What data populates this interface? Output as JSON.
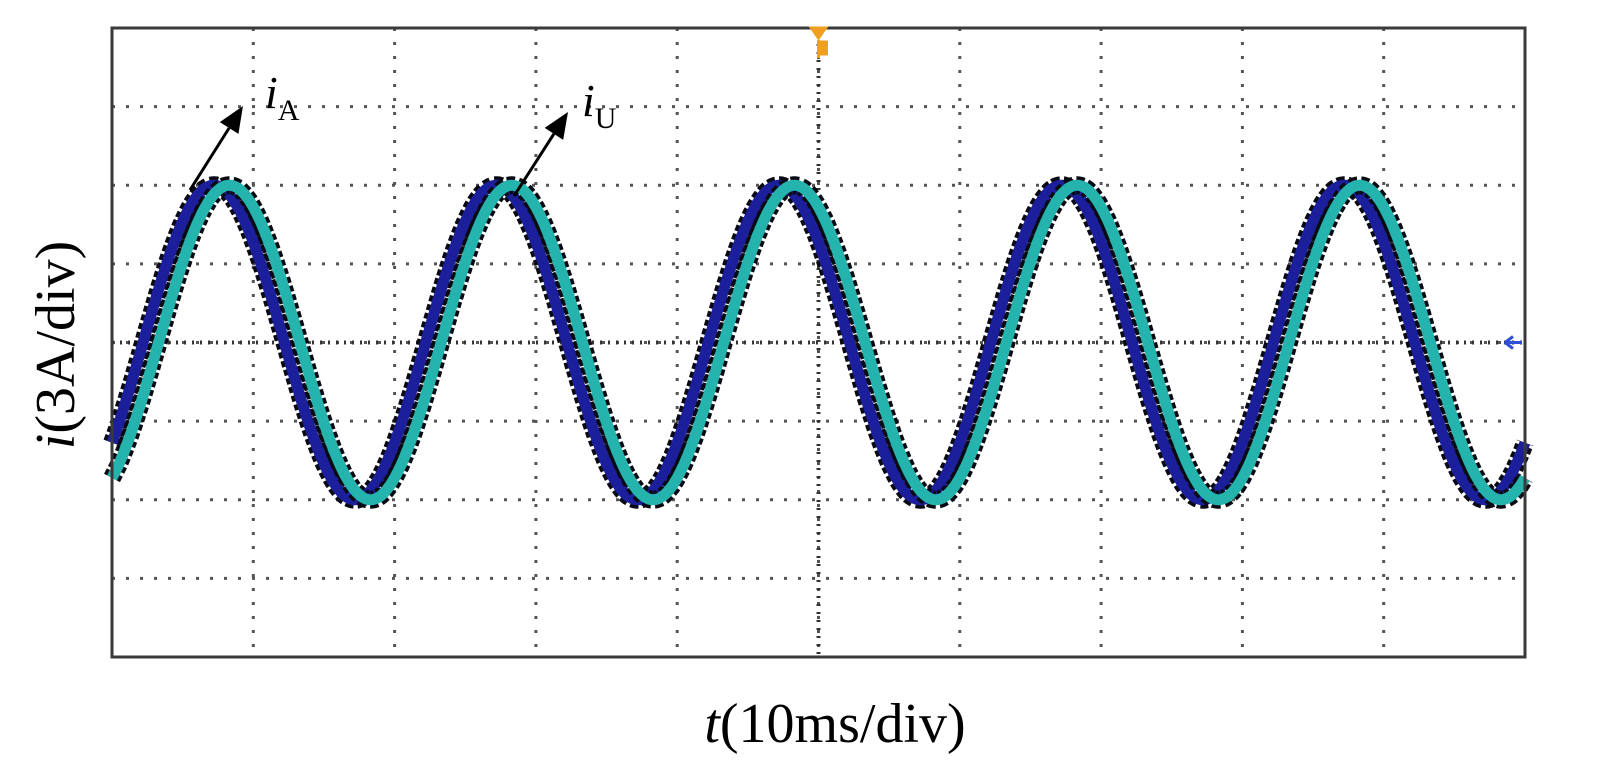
{
  "chart_data": {
    "type": "line",
    "xlabel": {
      "symbol": "t",
      "unit": "(10ms/div)"
    },
    "ylabel": {
      "symbol": "i",
      "unit": "(3A/div)"
    },
    "grid": true,
    "xlim": [
      0,
      10
    ],
    "ylim": [
      -4,
      4
    ],
    "x_unit": "div",
    "y_unit": "div",
    "series": [
      {
        "name": "i_A",
        "symbol": "i",
        "subscript": "A",
        "color": "#1c1f9c",
        "amplitude": 2.0,
        "offset": 0.0,
        "period": 2.0,
        "phase_div": 0.72
      },
      {
        "name": "i_U",
        "symbol": "i",
        "subscript": "U",
        "color": "#25b4ad",
        "amplitude": 2.0,
        "offset": 0.0,
        "period": 2.0,
        "phase_div": 0.72
      }
    ],
    "markers": {
      "trigger_color": "#f0a020",
      "level_color": "#2f4fd8"
    }
  }
}
